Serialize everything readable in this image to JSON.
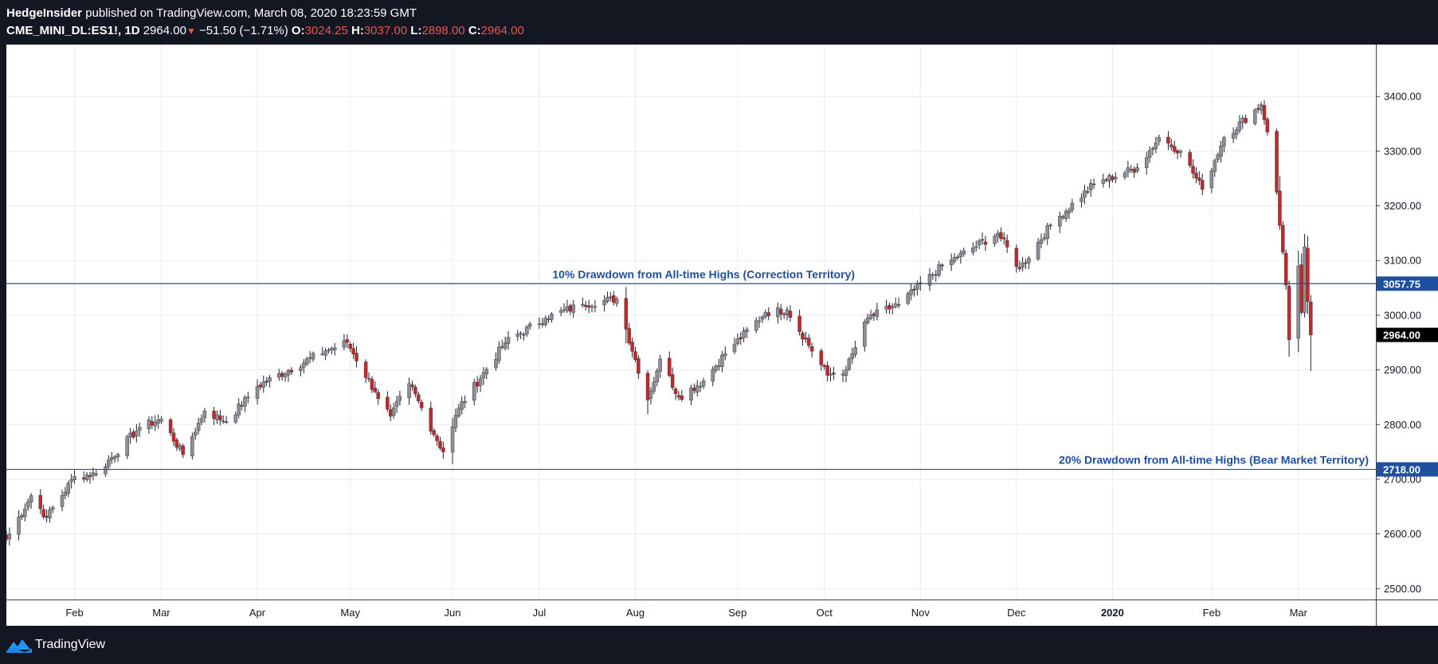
{
  "header": {
    "author": "HedgeInsider",
    "published_text": "published on TradingView.com, March 08, 2020 18:23:59 GMT",
    "symbol": "CME_MINI_DL:ES1!, 1D",
    "last": "2964.00",
    "change_arrow": "▼",
    "change": "−51.50 (−1.71%)",
    "open_label": "O:",
    "open": "3024.25",
    "high_label": "H:",
    "high": "3037.00",
    "low_label": "L:",
    "low": "2898.00",
    "close_label": "C:",
    "close": "2964.00"
  },
  "footer": {
    "brand": "TradingView",
    "icon": "tradingview-logo-icon"
  },
  "colors": {
    "up": "#8d8f96",
    "down": "#c62828",
    "level_line": "#1e4fa0",
    "grid": "#e9eaee",
    "current_price_bg": "#000000"
  },
  "chart_data": {
    "type": "candlestick",
    "title": "",
    "xlabel": "",
    "ylabel": "",
    "ylim": [
      2480,
      3495
    ],
    "yticks": [
      2500,
      2600,
      2700,
      2800,
      2900,
      3000,
      3100,
      3200,
      3300,
      3400
    ],
    "ytick_labels": [
      "2500.00",
      "2600.00",
      "2700.00",
      "2800.00",
      "2900.00",
      "3000.00",
      "3100.00",
      "3200.00",
      "3300.00",
      "3400.00"
    ],
    "x_range": [
      "2019-01-10",
      "2020-03-27"
    ],
    "xticks": [
      {
        "date": "2019-02-01",
        "label": "Feb"
      },
      {
        "date": "2019-03-01",
        "label": "Mar"
      },
      {
        "date": "2019-04-01",
        "label": "Apr"
      },
      {
        "date": "2019-05-01",
        "label": "May"
      },
      {
        "date": "2019-06-03",
        "label": "Jun"
      },
      {
        "date": "2019-07-01",
        "label": "Jul"
      },
      {
        "date": "2019-08-01",
        "label": "Aug"
      },
      {
        "date": "2019-09-03",
        "label": "Sep"
      },
      {
        "date": "2019-10-01",
        "label": "Oct"
      },
      {
        "date": "2019-11-01",
        "label": "Nov"
      },
      {
        "date": "2019-12-02",
        "label": "Dec"
      },
      {
        "date": "2020-01-02",
        "label": "2020"
      },
      {
        "date": "2020-02-03",
        "label": "Feb"
      },
      {
        "date": "2020-03-02",
        "label": "Mar"
      }
    ],
    "anchors": [
      [
        "2019-01-10",
        2590
      ],
      [
        "2019-01-18",
        2670
      ],
      [
        "2019-01-23",
        2630
      ],
      [
        "2019-02-01",
        2705
      ],
      [
        "2019-02-08",
        2710
      ],
      [
        "2019-02-22",
        2795
      ],
      [
        "2019-03-01",
        2810
      ],
      [
        "2019-03-08",
        2745
      ],
      [
        "2019-03-15",
        2825
      ],
      [
        "2019-03-22",
        2805
      ],
      [
        "2019-04-01",
        2870
      ],
      [
        "2019-04-23",
        2935
      ],
      [
        "2019-04-30",
        2950
      ],
      [
        "2019-05-09",
        2860
      ],
      [
        "2019-05-14",
        2815
      ],
      [
        "2019-05-20",
        2875
      ],
      [
        "2019-05-31",
        2750
      ],
      [
        "2019-06-05",
        2830
      ],
      [
        "2019-06-20",
        2950
      ],
      [
        "2019-07-03",
        2995
      ],
      [
        "2019-07-15",
        3020
      ],
      [
        "2019-07-26",
        3030
      ],
      [
        "2019-08-05",
        2845
      ],
      [
        "2019-08-09",
        2920
      ],
      [
        "2019-08-15",
        2850
      ],
      [
        "2019-08-23",
        2880
      ],
      [
        "2019-08-30",
        2930
      ],
      [
        "2019-09-12",
        3005
      ],
      [
        "2019-09-19",
        3010
      ],
      [
        "2019-10-02",
        2890
      ],
      [
        "2019-10-08",
        2900
      ],
      [
        "2019-10-15",
        2995
      ],
      [
        "2019-10-25",
        3020
      ],
      [
        "2019-11-08",
        3090
      ],
      [
        "2019-11-26",
        3150
      ],
      [
        "2019-12-03",
        3085
      ],
      [
        "2019-12-13",
        3165
      ],
      [
        "2019-12-27",
        3240
      ],
      [
        "2020-01-10",
        3270
      ],
      [
        "2020-01-17",
        3325
      ],
      [
        "2020-01-24",
        3300
      ],
      [
        "2020-01-31",
        3230
      ],
      [
        "2020-02-07",
        3325
      ],
      [
        "2020-02-19",
        3385
      ],
      [
        "2020-02-21",
        3335
      ],
      [
        "2020-02-24",
        3225
      ],
      [
        "2020-02-27",
        3055
      ],
      [
        "2020-02-28",
        2955
      ],
      [
        "2020-03-02",
        3090
      ],
      [
        "2020-03-03",
        3005
      ],
      [
        "2020-03-04",
        3125
      ],
      [
        "2020-03-05",
        3025
      ],
      [
        "2020-03-06",
        2964
      ]
    ],
    "last_candle": {
      "date": "2020-03-06",
      "open": 3024.25,
      "high": 3037.0,
      "low": 2898.0,
      "close": 2964.0
    },
    "levels": [
      {
        "value": 3057.75,
        "label": "3057.75",
        "annotation": "10% Drawdown from All-time Highs (Correction Territory)"
      },
      {
        "value": 2718.0,
        "label": "2718.00",
        "annotation": "20% Drawdown from All-time Highs (Bear Market Territory)"
      }
    ],
    "current_price": {
      "value": 2964.0,
      "label": "2964.00"
    },
    "grid": true
  }
}
